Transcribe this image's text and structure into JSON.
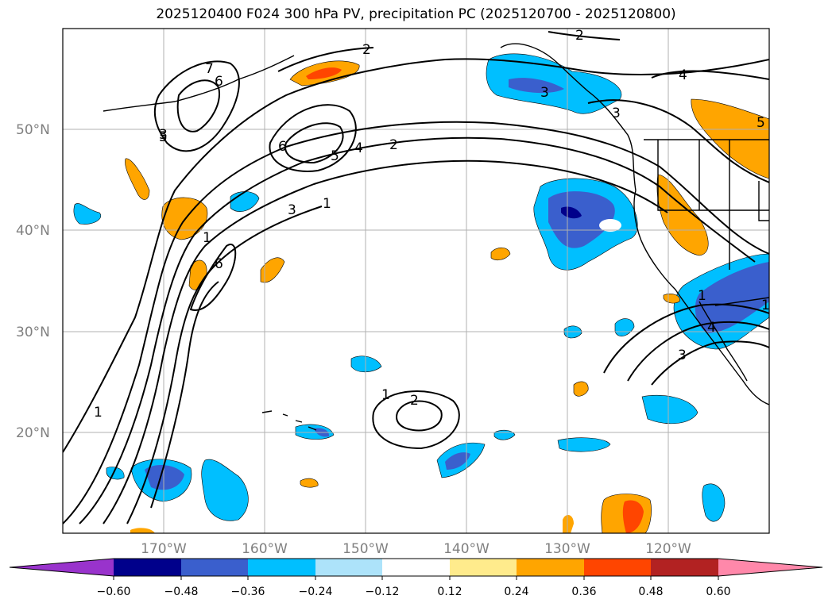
{
  "title": "2025120400 F024 300 hPa PV, precipitation PC (2025120700 - 2025120800)",
  "lat_labels": [
    "50°N",
    "40°N",
    "30°N",
    "20°N"
  ],
  "lon_labels": [
    "170°W",
    "160°W",
    "150°W",
    "140°W",
    "130°W",
    "120°W"
  ],
  "contour_labels": [
    "1",
    "2",
    "3",
    "4",
    "5",
    "6",
    "7",
    "1",
    "2",
    "3",
    "4",
    "5",
    "6",
    "1",
    "2",
    "3",
    "4",
    "5",
    "1",
    "2",
    "3",
    "1",
    "6",
    "1",
    "3"
  ],
  "colorbar": {
    "tick_labels": [
      "−0.60",
      "−0.48",
      "−0.36",
      "−0.24",
      "−0.12",
      "0.12",
      "0.24",
      "0.36",
      "0.48",
      "0.60"
    ],
    "colors": [
      "#9933CC",
      "#00008B",
      "#3A5FCD",
      "#00BFFF",
      "#ADE3FA",
      "#FFFFFF",
      "#FFEB8C",
      "#FFA500",
      "#FF4500",
      "#B22222",
      "#FF88AA"
    ]
  },
  "colors": {
    "neg_strong": "#00008B",
    "neg_mid": "#3A5FCD",
    "neg_weak": "#00BFFF",
    "pos_weak": "#FFA500",
    "pos_mid": "#FF4500",
    "grid": "#b0b0b0"
  }
}
